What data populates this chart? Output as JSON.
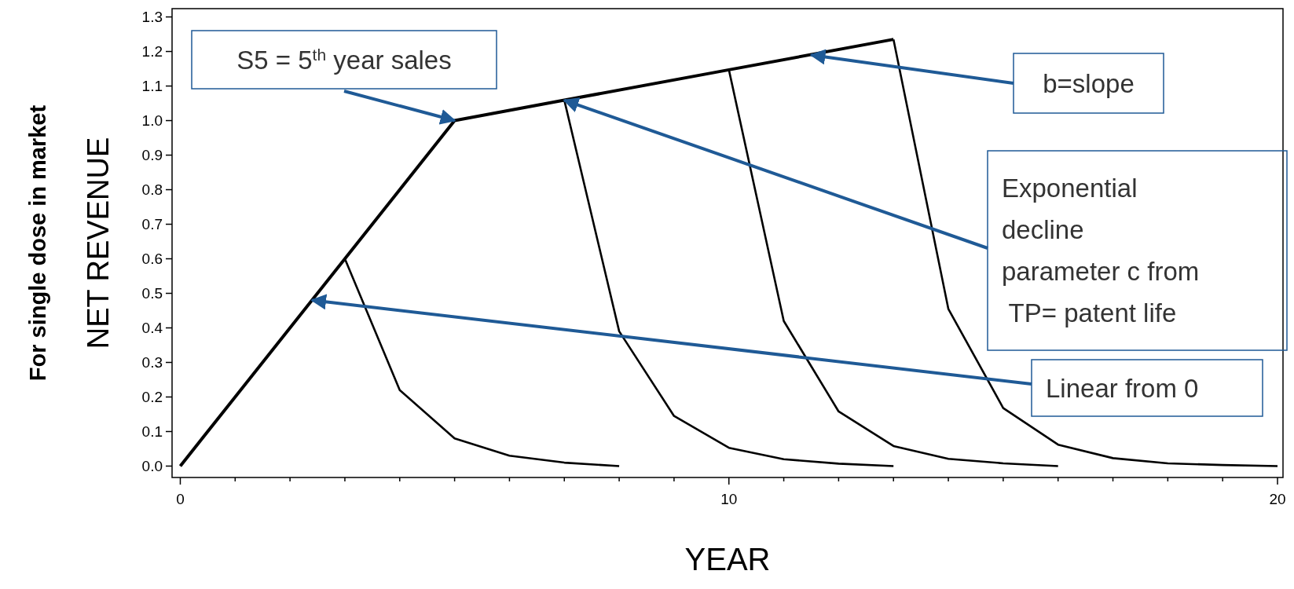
{
  "chart_data": {
    "type": "line",
    "xlabel": "YEAR",
    "ylabel": "For single dose in market\nNET REVENUE",
    "xlim": [
      -0.15,
      20.1
    ],
    "ylim": [
      -0.033,
      1.324
    ],
    "xticks": [
      0,
      {
        "value": 1,
        "label": null
      },
      {
        "value": 2,
        "label": null
      },
      {
        "value": 3,
        "label": null
      },
      {
        "value": 4,
        "label": null
      },
      {
        "value": 5,
        "label": null
      },
      {
        "value": 6,
        "label": null
      },
      {
        "value": 7,
        "label": null
      },
      {
        "value": 8,
        "label": null
      },
      {
        "value": 9,
        "label": null
      },
      10,
      {
        "value": 11,
        "label": null
      },
      {
        "value": 12,
        "label": null
      },
      {
        "value": 13,
        "label": null
      },
      {
        "value": 14,
        "label": null
      },
      {
        "value": 15,
        "label": null
      },
      {
        "value": 16,
        "label": null
      },
      {
        "value": 17,
        "label": null
      },
      {
        "value": 18,
        "label": null
      },
      {
        "value": 19,
        "label": null
      },
      20
    ],
    "yticks": [
      {
        "value": 0,
        "label": "0.0"
      },
      {
        "value": 0.1,
        "label": "0.1"
      },
      {
        "value": 0.2,
        "label": "0.2"
      },
      {
        "value": 0.3,
        "label": "0.3"
      },
      {
        "value": 0.4,
        "label": "0.4"
      },
      {
        "value": 0.5,
        "label": "0.5"
      },
      {
        "value": 0.6,
        "label": "0.6"
      },
      {
        "value": 0.7,
        "label": "0.7"
      },
      {
        "value": 0.8,
        "label": "0.8"
      },
      {
        "value": 0.9,
        "label": "0.9"
      },
      {
        "value": 1,
        "label": "1.0"
      },
      {
        "value": 1.1,
        "label": "1.1"
      },
      {
        "value": 1.2,
        "label": "1.2"
      },
      {
        "value": 1.3,
        "label": "1.3"
      }
    ],
    "grid": false,
    "marker": "none",
    "line_style": "solid",
    "series": [
      {
        "color": "#000000",
        "x": [
          0,
          3,
          5,
          7,
          10,
          13
        ],
        "values": [
          0,
          0.6,
          1.0,
          1.059,
          1.147,
          1.235
        ]
      },
      {
        "color": "#000000",
        "x": [
          3,
          4,
          5,
          6,
          7,
          8
        ],
        "values": [
          0.6,
          0.22,
          0.08,
          0.03,
          0.01,
          0
        ]
      },
      {
        "color": "#000000",
        "x": [
          7,
          8,
          9,
          10,
          11,
          12,
          13
        ],
        "values": [
          1.059,
          0.39,
          0.145,
          0.053,
          0.02,
          0.007,
          0
        ]
      },
      {
        "color": "#000000",
        "x": [
          10,
          11,
          12,
          13,
          14,
          15,
          16
        ],
        "values": [
          1.147,
          0.42,
          0.158,
          0.058,
          0.021,
          0.008,
          0
        ]
      },
      {
        "color": "#000000",
        "x": [
          13,
          14,
          15,
          16,
          17,
          18,
          19,
          20
        ],
        "values": [
          1.235,
          0.455,
          0.168,
          0.062,
          0.023,
          0.008,
          0.003,
          0
        ]
      }
    ],
    "annotations": [
      {
        "text": "S5 = 5$^{th}$ year sales",
        "x": 5,
        "y": 1.0
      },
      {
        "text": "b=slope",
        "x": 11.5,
        "y": 1.19
      },
      {
        "text": "Exponential\ndecline\nparameter c from\n TP= patent life",
        "x": 7,
        "y": 1.059
      },
      {
        "text": "Linear from 0",
        "x": 2.4,
        "y": 0.48
      }
    ]
  }
}
